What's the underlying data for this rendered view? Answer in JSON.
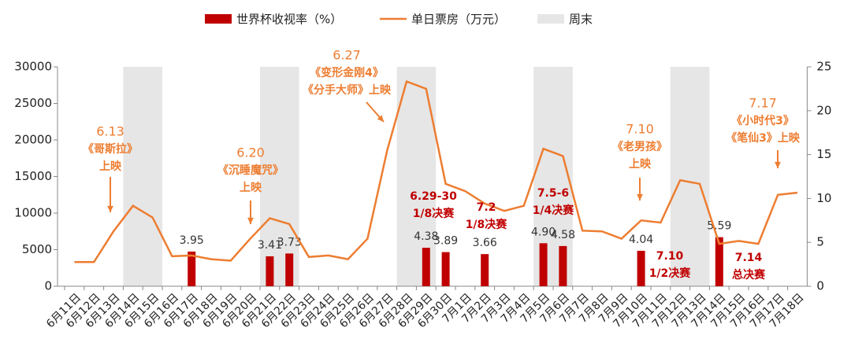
{
  "chart_data": {
    "type": "combo",
    "categories": [
      "6月11日",
      "6月12日",
      "6月13日",
      "6月14日",
      "6月15日",
      "6月16日",
      "6月17日",
      "6月18日",
      "6月19日",
      "6月20日",
      "6月21日",
      "6月22日",
      "6月23日",
      "6月24日",
      "6月25日",
      "6月26日",
      "6月27日",
      "6月28日",
      "6月29日",
      "6月30日",
      "7月1日",
      "7月2日",
      "7月3日",
      "7月4日",
      "7月5日",
      "7月6日",
      "7月7日",
      "7月8日",
      "7月9日",
      "7月10日",
      "7月11日",
      "7月12日",
      "7月13日",
      "7月14日",
      "7月15日",
      "7月16日",
      "7月17日",
      "7月18日"
    ],
    "series": [
      {
        "name": "世界杯收视率（%）",
        "type": "bar",
        "axis": "y2",
        "color": "#c00000",
        "values": [
          null,
          null,
          null,
          null,
          null,
          null,
          3.95,
          null,
          null,
          null,
          3.41,
          3.73,
          null,
          null,
          null,
          null,
          null,
          null,
          4.38,
          3.89,
          null,
          3.66,
          null,
          null,
          4.9,
          4.58,
          null,
          null,
          null,
          4.04,
          null,
          null,
          null,
          5.59,
          null,
          null,
          null,
          null
        ],
        "value_labels": [
          null,
          null,
          null,
          null,
          null,
          null,
          "3.95",
          null,
          null,
          null,
          "3.41",
          "3.73",
          null,
          null,
          null,
          null,
          null,
          null,
          "4.38",
          "3.89",
          null,
          "3.66",
          null,
          null,
          "4.90",
          "4.58",
          null,
          null,
          null,
          "4.04",
          null,
          null,
          null,
          "5.59",
          null,
          null,
          null,
          null
        ]
      },
      {
        "name": "单日票房（万元）",
        "type": "line",
        "color": "#ed7d31",
        "values": [
          3300,
          3300,
          7500,
          11000,
          9400,
          4100,
          4200,
          3700,
          3500,
          6500,
          9300,
          8500,
          4000,
          4200,
          3700,
          6500,
          18500,
          28000,
          27000,
          14000,
          13000,
          11300,
          10300,
          11000,
          18800,
          17800,
          7600,
          7500,
          6500,
          9000,
          8700,
          14500,
          14000,
          5800,
          6200,
          5800,
          12500,
          12800
        ]
      }
    ],
    "shade": {
      "name": "周末",
      "color": "#e6e6e6",
      "spans": [
        [
          "6月14日",
          "6月15日"
        ],
        [
          "6月21日",
          "6月22日"
        ],
        [
          "6月28日",
          "6月29日"
        ],
        [
          "7月5日",
          "7月6日"
        ],
        [
          "7月12日",
          "7月13日"
        ]
      ]
    },
    "ylim": [
      0,
      30000
    ],
    "yticks": [
      0,
      5000,
      10000,
      15000,
      20000,
      25000,
      30000
    ],
    "y2lim": [
      0,
      25
    ],
    "y2ticks": [
      0,
      5,
      10,
      15,
      20,
      25
    ],
    "annotations": [
      {
        "lines": [
          "6.13",
          "《哥斯拉》",
          "上映"
        ],
        "color": "#ed7d31"
      },
      {
        "lines": [
          "6.20",
          "《沉睡魔咒》",
          "上映"
        ],
        "color": "#ed7d31"
      },
      {
        "lines": [
          "6.27",
          "《变形金刚4》",
          "《分手大师》上映"
        ],
        "color": "#ed7d31"
      },
      {
        "lines": [
          "7.10",
          "《老男孩》",
          "上映"
        ],
        "color": "#ed7d31"
      },
      {
        "lines": [
          "7.17",
          "《小时代3》",
          "《笔仙3》上映"
        ],
        "color": "#ed7d31"
      },
      {
        "lines": [
          "6.29-30",
          "1/8决赛"
        ],
        "color": "#c00000"
      },
      {
        "lines": [
          "7.2",
          "1/8决赛"
        ],
        "color": "#c00000"
      },
      {
        "lines": [
          "7.5-6",
          "1/4决赛"
        ],
        "color": "#c00000"
      },
      {
        "lines": [
          "7.10",
          "1/2决赛"
        ],
        "color": "#c00000"
      },
      {
        "lines": [
          "7.14",
          "总决赛"
        ],
        "color": "#c00000"
      }
    ]
  }
}
